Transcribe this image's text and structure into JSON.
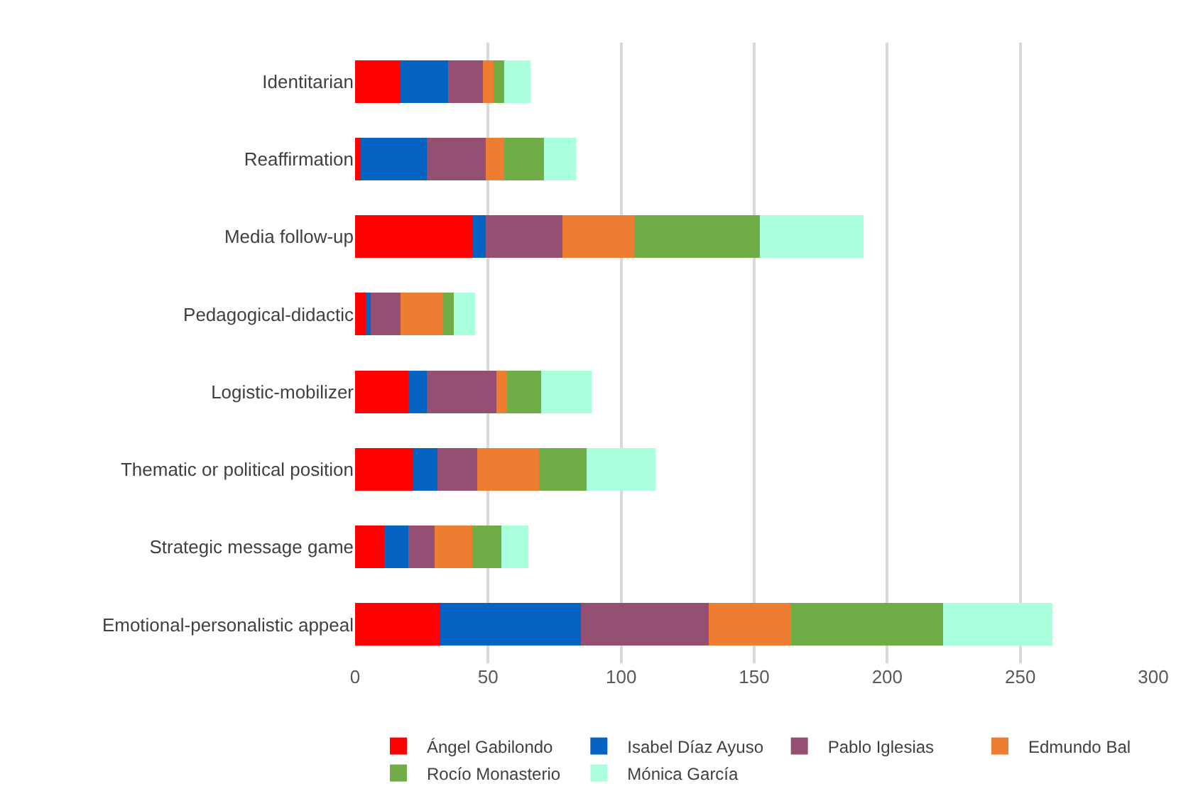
{
  "chart_data": {
    "type": "bar",
    "orientation": "horizontal",
    "stacked": true,
    "categories": [
      "Identitarian",
      "Reaffirmation",
      "Media follow-up",
      "Pedagogical-didactic",
      "Logistic-mobilizer",
      "Thematic or political position",
      "Strategic message game",
      "Emotional-personalistic appeal"
    ],
    "series": [
      {
        "name": "Ángel Gabilondo",
        "color": "#ff0000",
        "values": [
          17,
          2,
          44,
          4,
          20,
          22,
          11,
          32
        ]
      },
      {
        "name": "Isabel Díaz Ayuso",
        "color": "#0563c1",
        "values": [
          18,
          25,
          5,
          2,
          7,
          9,
          9,
          53
        ]
      },
      {
        "name": "Pablo Iglesias",
        "color": "#954f72",
        "values": [
          13,
          22,
          29,
          11,
          26,
          15,
          10,
          48
        ]
      },
      {
        "name": "Edmundo Bal",
        "color": "#ed7d31",
        "values": [
          4,
          7,
          27,
          16,
          4,
          23,
          14,
          31
        ]
      },
      {
        "name": "Rocío Monasterio",
        "color": "#70ad47",
        "values": [
          4,
          15,
          47,
          4,
          13,
          18,
          11,
          57
        ]
      },
      {
        "name": "Mónica García",
        "color": "#aaffdd",
        "values": [
          10,
          12,
          39,
          8,
          19,
          26,
          10,
          41
        ]
      }
    ],
    "xlim": [
      0,
      300
    ],
    "xticks": [
      0,
      50,
      100,
      150,
      200,
      250,
      300
    ],
    "grid": "x",
    "legend": "bottom"
  }
}
